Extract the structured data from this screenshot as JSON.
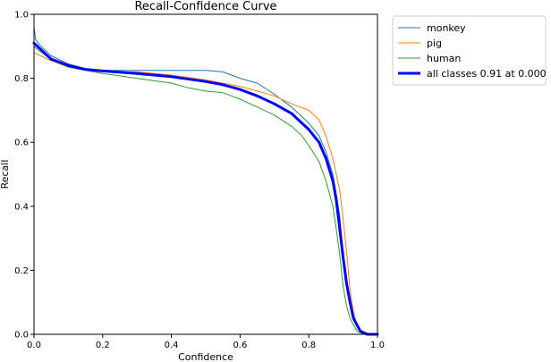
{
  "chart_data": {
    "type": "line",
    "title": "Recall-Confidence Curve",
    "xlabel": "Confidence",
    "ylabel": "Recall",
    "xlim": [
      0.0,
      1.0
    ],
    "ylim": [
      0.0,
      1.0
    ],
    "xticks": [
      "0.0",
      "0.2",
      "0.4",
      "0.6",
      "0.8",
      "1.0"
    ],
    "yticks": [
      "0.0",
      "0.2",
      "0.4",
      "0.6",
      "0.8",
      "1.0"
    ],
    "grid": false,
    "legend_position": "outside-top-right",
    "series": [
      {
        "name": "monkey",
        "color": "#1f77b4",
        "width": 1,
        "points": [
          [
            0.0,
            0.96
          ],
          [
            0.005,
            0.92
          ],
          [
            0.02,
            0.9
          ],
          [
            0.05,
            0.87
          ],
          [
            0.1,
            0.845
          ],
          [
            0.15,
            0.83
          ],
          [
            0.2,
            0.825
          ],
          [
            0.3,
            0.825
          ],
          [
            0.4,
            0.825
          ],
          [
            0.5,
            0.825
          ],
          [
            0.55,
            0.82
          ],
          [
            0.6,
            0.8
          ],
          [
            0.65,
            0.785
          ],
          [
            0.7,
            0.75
          ],
          [
            0.75,
            0.71
          ],
          [
            0.8,
            0.66
          ],
          [
            0.83,
            0.62
          ],
          [
            0.85,
            0.57
          ],
          [
            0.87,
            0.5
          ],
          [
            0.88,
            0.44
          ],
          [
            0.89,
            0.37
          ],
          [
            0.9,
            0.25
          ],
          [
            0.91,
            0.17
          ],
          [
            0.92,
            0.1
          ],
          [
            0.93,
            0.05
          ],
          [
            0.95,
            0.01
          ],
          [
            0.97,
            0.0
          ],
          [
            1.0,
            0.0
          ]
        ]
      },
      {
        "name": "pig",
        "color": "#ff7f0e",
        "width": 1,
        "points": [
          [
            0.0,
            0.88
          ],
          [
            0.02,
            0.87
          ],
          [
            0.05,
            0.855
          ],
          [
            0.1,
            0.835
          ],
          [
            0.15,
            0.825
          ],
          [
            0.2,
            0.82
          ],
          [
            0.3,
            0.82
          ],
          [
            0.4,
            0.81
          ],
          [
            0.5,
            0.795
          ],
          [
            0.55,
            0.785
          ],
          [
            0.6,
            0.775
          ],
          [
            0.65,
            0.76
          ],
          [
            0.7,
            0.745
          ],
          [
            0.75,
            0.72
          ],
          [
            0.8,
            0.7
          ],
          [
            0.83,
            0.67
          ],
          [
            0.85,
            0.62
          ],
          [
            0.87,
            0.55
          ],
          [
            0.89,
            0.45
          ],
          [
            0.9,
            0.36
          ],
          [
            0.91,
            0.26
          ],
          [
            0.92,
            0.14
          ],
          [
            0.93,
            0.07
          ],
          [
            0.94,
            0.03
          ],
          [
            0.95,
            0.01
          ],
          [
            0.97,
            0.0
          ],
          [
            1.0,
            0.0
          ]
        ]
      },
      {
        "name": "human",
        "color": "#2ca02c",
        "width": 1,
        "points": [
          [
            0.0,
            0.9
          ],
          [
            0.01,
            0.89
          ],
          [
            0.05,
            0.86
          ],
          [
            0.1,
            0.835
          ],
          [
            0.15,
            0.825
          ],
          [
            0.2,
            0.815
          ],
          [
            0.3,
            0.8
          ],
          [
            0.4,
            0.785
          ],
          [
            0.45,
            0.77
          ],
          [
            0.5,
            0.76
          ],
          [
            0.55,
            0.755
          ],
          [
            0.6,
            0.735
          ],
          [
            0.65,
            0.71
          ],
          [
            0.7,
            0.685
          ],
          [
            0.75,
            0.65
          ],
          [
            0.78,
            0.62
          ],
          [
            0.8,
            0.59
          ],
          [
            0.83,
            0.54
          ],
          [
            0.85,
            0.48
          ],
          [
            0.87,
            0.4
          ],
          [
            0.88,
            0.33
          ],
          [
            0.89,
            0.25
          ],
          [
            0.9,
            0.15
          ],
          [
            0.91,
            0.09
          ],
          [
            0.92,
            0.05
          ],
          [
            0.94,
            0.01
          ],
          [
            0.96,
            0.0
          ],
          [
            1.0,
            0.0
          ]
        ]
      },
      {
        "name": "all classes 0.91 at 0.000",
        "color": "#0000ff",
        "width": 3,
        "points": [
          [
            0.0,
            0.91
          ],
          [
            0.01,
            0.9
          ],
          [
            0.03,
            0.88
          ],
          [
            0.05,
            0.86
          ],
          [
            0.1,
            0.84
          ],
          [
            0.15,
            0.828
          ],
          [
            0.2,
            0.823
          ],
          [
            0.3,
            0.815
          ],
          [
            0.4,
            0.805
          ],
          [
            0.5,
            0.79
          ],
          [
            0.55,
            0.78
          ],
          [
            0.6,
            0.765
          ],
          [
            0.65,
            0.745
          ],
          [
            0.7,
            0.72
          ],
          [
            0.75,
            0.69
          ],
          [
            0.8,
            0.64
          ],
          [
            0.83,
            0.6
          ],
          [
            0.85,
            0.55
          ],
          [
            0.87,
            0.48
          ],
          [
            0.88,
            0.42
          ],
          [
            0.89,
            0.33
          ],
          [
            0.9,
            0.24
          ],
          [
            0.91,
            0.16
          ],
          [
            0.92,
            0.1
          ],
          [
            0.93,
            0.05
          ],
          [
            0.95,
            0.01
          ],
          [
            0.97,
            0.0
          ],
          [
            1.0,
            0.0
          ]
        ]
      }
    ]
  }
}
